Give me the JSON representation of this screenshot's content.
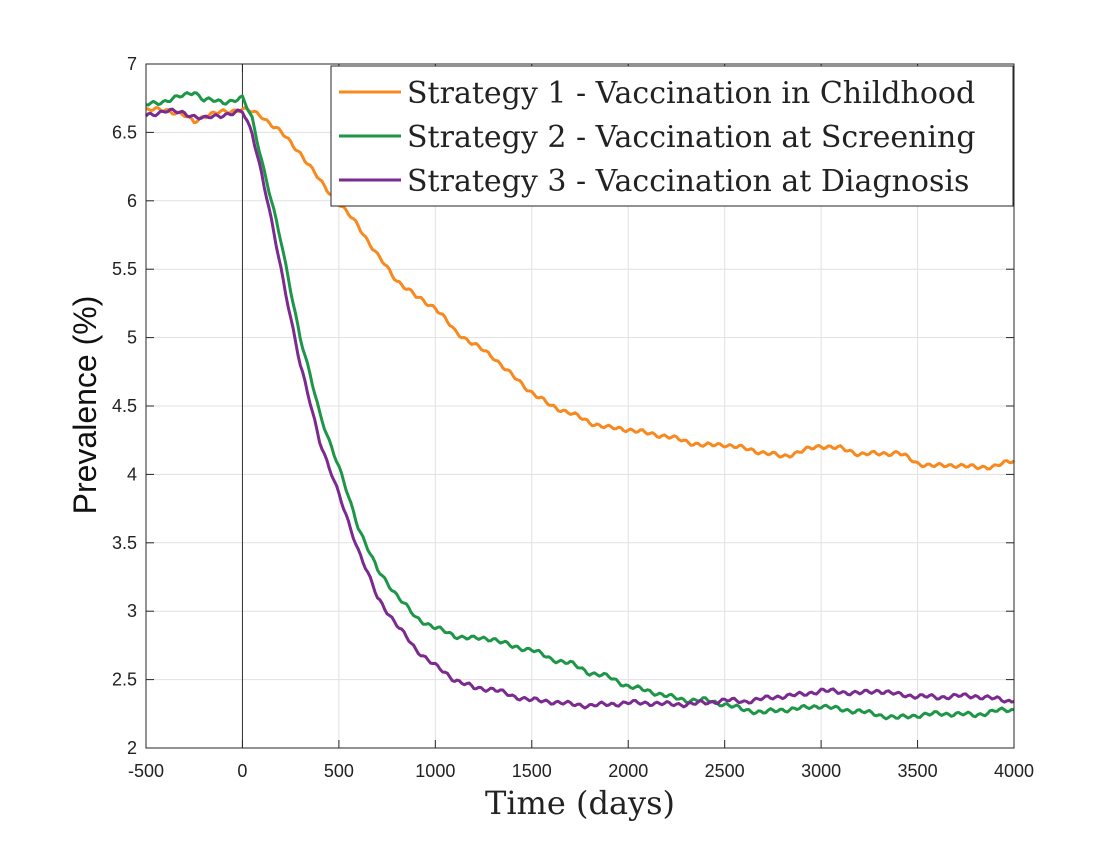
{
  "chart_data": {
    "type": "line",
    "title": "",
    "xlabel": "Time (days)",
    "ylabel": "Prevalence (%)",
    "xlim": [
      -500,
      4000
    ],
    "ylim": [
      2,
      7
    ],
    "x_ticks": [
      -500,
      0,
      500,
      1000,
      1500,
      2000,
      2500,
      3000,
      3500,
      4000
    ],
    "x_tick_labels": [
      "-500",
      "0",
      "500",
      "1000",
      "1500",
      "2000",
      "2500",
      "3000",
      "3500",
      "4000"
    ],
    "y_ticks": [
      2,
      2.5,
      3,
      3.5,
      4,
      4.5,
      5,
      5.5,
      6,
      6.5,
      7
    ],
    "y_tick_labels": [
      "2",
      "2.5",
      "3",
      "3.5",
      "4",
      "4.5",
      "5",
      "5.5",
      "6",
      "6.5",
      "7"
    ],
    "grid": true,
    "vertical_reference_line_x": 0,
    "legend_position": "top-right",
    "x": [
      -500,
      -400,
      -300,
      -250,
      -200,
      -100,
      0,
      50,
      100,
      200,
      300,
      400,
      500,
      600,
      700,
      800,
      900,
      1000,
      1100,
      1200,
      1300,
      1400,
      1500,
      1600,
      1700,
      1800,
      1900,
      2000,
      2100,
      2200,
      2300,
      2400,
      2500,
      2600,
      2700,
      2800,
      2900,
      3000,
      3100,
      3200,
      3300,
      3400,
      3500,
      3600,
      3700,
      3800,
      3900,
      4000
    ],
    "series": [
      {
        "name": "Strategy 1 - Vaccination in Childhood",
        "color": "#f7891e",
        "values": [
          6.66,
          6.67,
          6.62,
          6.58,
          6.62,
          6.65,
          6.67,
          6.65,
          6.62,
          6.5,
          6.35,
          6.15,
          5.98,
          5.82,
          5.6,
          5.42,
          5.3,
          5.22,
          5.05,
          4.95,
          4.86,
          4.72,
          4.6,
          4.5,
          4.45,
          4.38,
          4.34,
          4.33,
          4.3,
          4.28,
          4.24,
          4.21,
          4.22,
          4.19,
          4.16,
          4.13,
          4.17,
          4.21,
          4.19,
          4.15,
          4.15,
          4.16,
          4.08,
          4.06,
          4.07,
          4.05,
          4.06,
          4.1
        ]
      },
      {
        "name": "Strategy 2 - Vaccination at Screening",
        "color": "#1e9648",
        "values": [
          6.7,
          6.73,
          6.77,
          6.8,
          6.74,
          6.72,
          6.75,
          6.6,
          6.3,
          5.7,
          5.0,
          4.45,
          4.05,
          3.62,
          3.3,
          3.12,
          2.95,
          2.88,
          2.82,
          2.8,
          2.8,
          2.74,
          2.72,
          2.65,
          2.62,
          2.55,
          2.52,
          2.45,
          2.42,
          2.38,
          2.35,
          2.35,
          2.32,
          2.28,
          2.26,
          2.28,
          2.29,
          2.31,
          2.28,
          2.27,
          2.24,
          2.22,
          2.24,
          2.25,
          2.25,
          2.24,
          2.27,
          2.28
        ]
      },
      {
        "name": "Strategy 3 - Vaccination at Diagnosis",
        "color": "#7b2a8f",
        "values": [
          6.62,
          6.66,
          6.64,
          6.62,
          6.6,
          6.63,
          6.65,
          6.5,
          6.2,
          5.5,
          4.8,
          4.25,
          3.85,
          3.45,
          3.1,
          2.9,
          2.72,
          2.6,
          2.5,
          2.44,
          2.43,
          2.38,
          2.35,
          2.34,
          2.32,
          2.31,
          2.32,
          2.33,
          2.33,
          2.32,
          2.32,
          2.33,
          2.35,
          2.34,
          2.36,
          2.38,
          2.39,
          2.42,
          2.41,
          2.4,
          2.42,
          2.39,
          2.38,
          2.37,
          2.38,
          2.38,
          2.36,
          2.34
        ]
      }
    ]
  }
}
